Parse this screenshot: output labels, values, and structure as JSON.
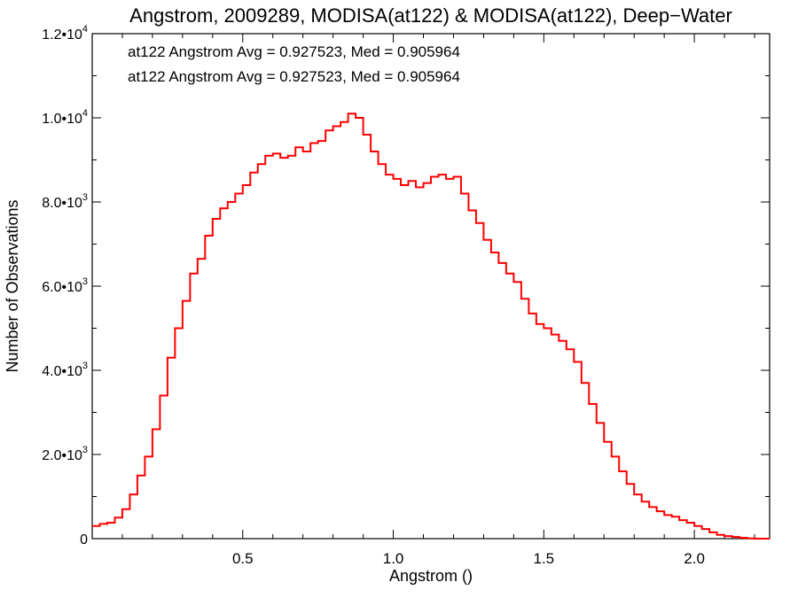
{
  "chart_data": {
    "type": "line",
    "step": true,
    "title": "Angstrom, 2009289, MODISA(at122) & MODISA(at122), Deep−Water",
    "xlabel": "Angstrom ()",
    "ylabel": "Number of Observations",
    "xlim": [
      0.0,
      2.25
    ],
    "ylim": [
      0,
      12000
    ],
    "x_ticks": [
      {
        "value": 0.5,
        "label": "0.5"
      },
      {
        "value": 1.0,
        "label": "1.0"
      },
      {
        "value": 1.5,
        "label": "1.5"
      },
      {
        "value": 2.0,
        "label": "2.0"
      }
    ],
    "y_ticks": [
      {
        "value": 0,
        "mant": "0",
        "exp": ""
      },
      {
        "value": 2000,
        "mant": "2.0•10",
        "exp": "3"
      },
      {
        "value": 4000,
        "mant": "4.0•10",
        "exp": "3"
      },
      {
        "value": 6000,
        "mant": "6.0•10",
        "exp": "3"
      },
      {
        "value": 8000,
        "mant": "8.0•10",
        "exp": "3"
      },
      {
        "value": 10000,
        "mant": "1.0•10",
        "exp": "4"
      },
      {
        "value": 12000,
        "mant": "1.2•10",
        "exp": "4"
      }
    ],
    "annotations": [
      {
        "text": "at122 Angstrom Avg = 0.927523, Med = 0.905964",
        "color": "#000000"
      },
      {
        "text": "at122 Angstrom Avg = 0.927523, Med = 0.905964",
        "color": "#ff0000"
      }
    ],
    "series": [
      {
        "color": "#ff0000",
        "x": [
          0.0,
          0.025,
          0.05,
          0.075,
          0.1,
          0.125,
          0.15,
          0.175,
          0.2,
          0.225,
          0.25,
          0.275,
          0.3,
          0.325,
          0.35,
          0.375,
          0.4,
          0.425,
          0.45,
          0.475,
          0.5,
          0.525,
          0.55,
          0.575,
          0.6,
          0.625,
          0.65,
          0.675,
          0.7,
          0.725,
          0.75,
          0.775,
          0.8,
          0.825,
          0.85,
          0.875,
          0.9,
          0.925,
          0.95,
          0.975,
          1.0,
          1.025,
          1.05,
          1.075,
          1.1,
          1.125,
          1.15,
          1.175,
          1.2,
          1.225,
          1.25,
          1.275,
          1.3,
          1.325,
          1.35,
          1.375,
          1.4,
          1.425,
          1.45,
          1.475,
          1.5,
          1.525,
          1.55,
          1.575,
          1.6,
          1.625,
          1.65,
          1.675,
          1.7,
          1.725,
          1.75,
          1.775,
          1.8,
          1.825,
          1.85,
          1.875,
          1.9,
          1.925,
          1.95,
          1.975,
          2.0,
          2.025,
          2.05,
          2.075,
          2.1,
          2.125,
          2.15,
          2.175,
          2.2,
          2.225,
          2.25
        ],
        "y": [
          300,
          350,
          380,
          500,
          700,
          1050,
          1500,
          1950,
          2600,
          3400,
          4300,
          5000,
          5650,
          6300,
          6650,
          7200,
          7600,
          7850,
          8000,
          8200,
          8400,
          8700,
          8900,
          9100,
          9150,
          9050,
          9100,
          9300,
          9200,
          9400,
          9450,
          9700,
          9800,
          9900,
          10100,
          10000,
          9600,
          9200,
          8900,
          8650,
          8550,
          8400,
          8500,
          8350,
          8450,
          8600,
          8650,
          8550,
          8600,
          8200,
          7800,
          7500,
          7100,
          6800,
          6550,
          6300,
          6100,
          5700,
          5350,
          5100,
          5000,
          4850,
          4700,
          4500,
          4200,
          3700,
          3200,
          2750,
          2300,
          1950,
          1600,
          1300,
          1050,
          880,
          750,
          650,
          560,
          520,
          440,
          380,
          300,
          230,
          150,
          90,
          60,
          40,
          20,
          5,
          0,
          0,
          0
        ]
      }
    ]
  }
}
